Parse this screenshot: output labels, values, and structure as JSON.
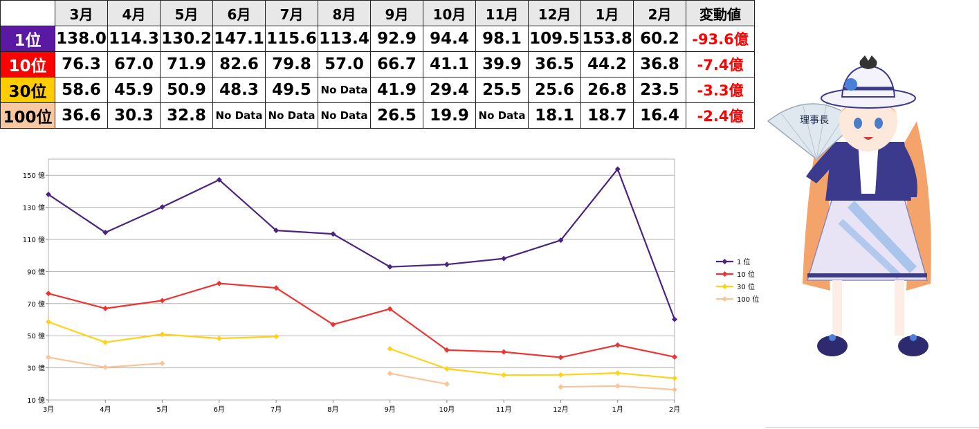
{
  "table": {
    "months": [
      "3月",
      "4月",
      "5月",
      "6月",
      "7月",
      "8月",
      "9月",
      "10月",
      "11月",
      "12月",
      "1月",
      "2月"
    ],
    "delta_header": "変動値",
    "rows": [
      {
        "rank": "1位",
        "bg": "#5a19a3",
        "text": "#ffffff",
        "cells": [
          "138.0",
          "114.3",
          "130.2",
          "147.1",
          "115.6",
          "113.4",
          "92.9",
          "94.4",
          "98.1",
          "109.5",
          "153.8",
          "60.2"
        ],
        "delta": "-93.6億"
      },
      {
        "rank": "10位",
        "bg": "#ff0000",
        "text": "#ffffff",
        "cells": [
          "76.3",
          "67.0",
          "71.9",
          "82.6",
          "79.8",
          "57.0",
          "66.7",
          "41.1",
          "39.9",
          "36.5",
          "44.2",
          "36.8"
        ],
        "delta": "-7.4億"
      },
      {
        "rank": "30位",
        "bg": "#ffcc00",
        "text": "#000000",
        "cells": [
          "58.6",
          "45.9",
          "50.9",
          "48.3",
          "49.5",
          "No Data",
          "41.9",
          "29.4",
          "25.5",
          "25.6",
          "26.8",
          "23.5"
        ],
        "delta": "-3.3億"
      },
      {
        "rank": "100位",
        "bg": "#f9c8a0",
        "text": "#000000",
        "cells": [
          "36.6",
          "30.3",
          "32.8",
          "No Data",
          "No Data",
          "No Data",
          "26.5",
          "19.9",
          "No Data",
          "18.1",
          "18.7",
          "16.4"
        ],
        "delta": "-2.4億"
      }
    ]
  },
  "chart_data": {
    "type": "line",
    "categories": [
      "3月",
      "4月",
      "5月",
      "6月",
      "7月",
      "8月",
      "9月",
      "10月",
      "11月",
      "12月",
      "1月",
      "2月"
    ],
    "series": [
      {
        "name": "1 位",
        "color": "#4b2480",
        "values": [
          138.0,
          114.3,
          130.2,
          147.1,
          115.6,
          113.4,
          92.9,
          94.4,
          98.1,
          109.5,
          153.8,
          60.2
        ]
      },
      {
        "name": "10 位",
        "color": "#ee3333",
        "values": [
          76.3,
          67.0,
          71.9,
          82.6,
          79.8,
          57.0,
          66.7,
          41.1,
          39.9,
          36.5,
          44.2,
          36.8
        ]
      },
      {
        "name": "30 位",
        "color": "#ffd21a",
        "values": [
          58.6,
          45.9,
          50.9,
          48.3,
          49.5,
          null,
          41.9,
          29.4,
          25.5,
          25.6,
          26.8,
          23.5
        ]
      },
      {
        "name": "100 位",
        "color": "#fbc498",
        "values": [
          36.6,
          30.3,
          32.8,
          null,
          null,
          null,
          26.5,
          19.9,
          null,
          18.1,
          18.7,
          16.4
        ]
      }
    ],
    "ylim": [
      10,
      160
    ],
    "yticks": [
      10,
      30,
      50,
      70,
      90,
      110,
      130,
      150
    ],
    "ytick_labels": [
      "10 億",
      "30 億",
      "50 億",
      "70 億",
      "90 億",
      "110 億",
      "130 億",
      "150 億"
    ],
    "grid": true,
    "legend": "right",
    "xlabel": "",
    "ylabel": ""
  },
  "mascot": {
    "fan_text": "理事長",
    "colors": {
      "hair": "#f4a46a",
      "coat": "#3b3a8c",
      "dress": "#e9e4f5",
      "stripe": "#8fb8e8",
      "hat": "#f4f2fb"
    }
  }
}
